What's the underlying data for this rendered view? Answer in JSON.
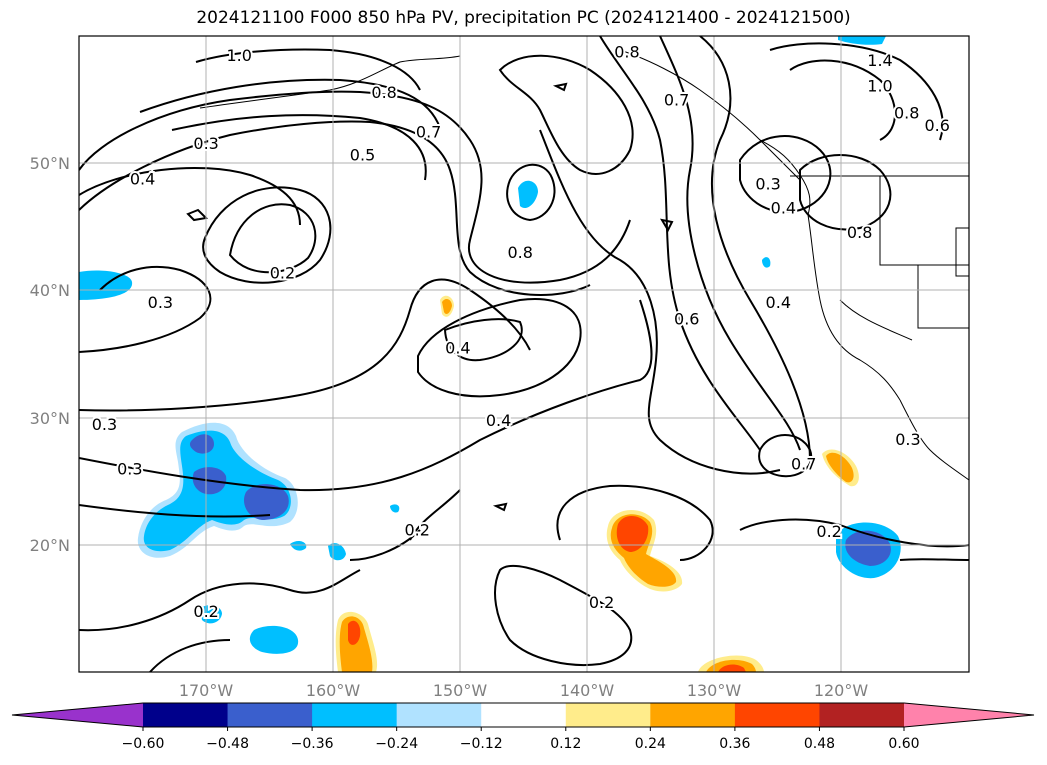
{
  "title": "2024121100 F000 850 hPa PV, precipitation PC (2024121400 - 2024121500)",
  "map": {
    "lon_range": [
      -180,
      -110
    ],
    "lat_range": [
      10,
      60
    ],
    "lat_ticks": [
      "50°N",
      "40°N",
      "30°N",
      "20°N"
    ],
    "lon_ticks": [
      "170°W",
      "160°W",
      "150°W",
      "140°W",
      "130°W",
      "120°W"
    ],
    "grid": true
  },
  "contour_labels": [
    {
      "text": "1.0",
      "lon": -167.4,
      "lat": 58.5
    },
    {
      "text": "0.3",
      "lon": -170.0,
      "lat": 51.6
    },
    {
      "text": "0.4",
      "lon": -175.0,
      "lat": 48.8
    },
    {
      "text": "0.8",
      "lon": -156.0,
      "lat": 55.6
    },
    {
      "text": "0.7",
      "lon": -152.5,
      "lat": 52.5
    },
    {
      "text": "0.5",
      "lon": -157.7,
      "lat": 50.7
    },
    {
      "text": "0.2",
      "lon": -164.0,
      "lat": 41.4
    },
    {
      "text": "0.3",
      "lon": -173.6,
      "lat": 39.1
    },
    {
      "text": "0.8",
      "lon": -136.9,
      "lat": 58.8
    },
    {
      "text": "0.8",
      "lon": -145.3,
      "lat": 43.0
    },
    {
      "text": "0.4",
      "lon": -150.2,
      "lat": 35.5
    },
    {
      "text": "0.4",
      "lon": -147.0,
      "lat": 29.8
    },
    {
      "text": "0.3",
      "lon": -178.0,
      "lat": 29.5
    },
    {
      "text": "0.3",
      "lon": -176.0,
      "lat": 26.0
    },
    {
      "text": "0.2",
      "lon": -153.4,
      "lat": 21.2
    },
    {
      "text": "0.2",
      "lon": -170.0,
      "lat": 14.8
    },
    {
      "text": "0.2",
      "lon": -138.9,
      "lat": 15.5
    },
    {
      "text": "0.6",
      "lon": -132.2,
      "lat": 37.8
    },
    {
      "text": "0.7",
      "lon": -133.0,
      "lat": 55.0
    },
    {
      "text": "0.3",
      "lon": -125.8,
      "lat": 48.4
    },
    {
      "text": "0.4",
      "lon": -124.6,
      "lat": 46.5
    },
    {
      "text": "0.4",
      "lon": -125.0,
      "lat": 39.1
    },
    {
      "text": "1.4",
      "lon": -117.0,
      "lat": 58.1
    },
    {
      "text": "1.0",
      "lon": -117.0,
      "lat": 56.1
    },
    {
      "text": "0.8",
      "lon": -114.9,
      "lat": 54.0
    },
    {
      "text": "0.6",
      "lon": -112.5,
      "lat": 53.0
    },
    {
      "text": "0.8",
      "lon": -118.6,
      "lat": 44.6
    },
    {
      "text": "0.7",
      "lon": -123.0,
      "lat": 26.4
    },
    {
      "text": "0.2",
      "lon": -121.0,
      "lat": 21.1
    },
    {
      "text": "0.3",
      "lon": -114.8,
      "lat": 28.3
    }
  ],
  "precip_levels": {
    "colors": [
      "#9932cc",
      "#00008b",
      "#3a5fcd",
      "#00bfff",
      "#b0e2ff",
      "#ffffff",
      "#ffec8b",
      "#ffa500",
      "#ff4500",
      "#b22222",
      "#ff82ab"
    ],
    "ticks": [
      "−0.60",
      "−0.48",
      "−0.36",
      "−0.24",
      "−0.12",
      "0.12",
      "0.24",
      "0.36",
      "0.48",
      "0.60"
    ]
  }
}
